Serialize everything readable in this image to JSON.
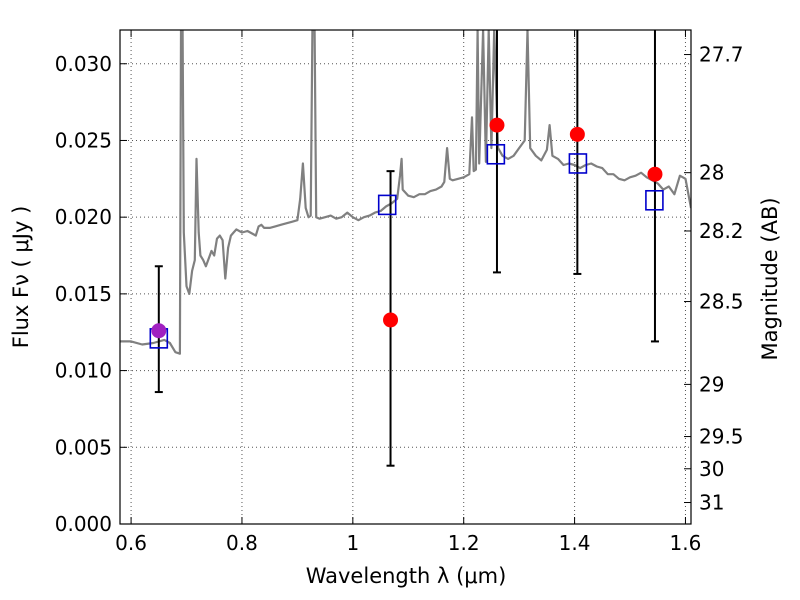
{
  "chart_data": {
    "type": "scatter",
    "xlabel": "Wavelength  λ (μm)",
    "ylabel": "Flux  Fν  ( μJy )",
    "y2label": "Magnitude (AB)",
    "xlim": [
      0.58,
      1.61
    ],
    "ylim": [
      0.0,
      0.0322
    ],
    "grid": true,
    "x_ticks": [
      {
        "value": 0.6,
        "label": "0.6"
      },
      {
        "value": 0.8,
        "label": "0.8"
      },
      {
        "value": 1.0,
        "label": "1"
      },
      {
        "value": 1.2,
        "label": "1.2"
      },
      {
        "value": 1.4,
        "label": "1.4"
      },
      {
        "value": 1.6,
        "label": "1.6"
      }
    ],
    "y_ticks": [
      {
        "value": 0.0,
        "label": "0.000"
      },
      {
        "value": 0.005,
        "label": "0.005"
      },
      {
        "value": 0.01,
        "label": "0.010"
      },
      {
        "value": 0.015,
        "label": "0.015"
      },
      {
        "value": 0.02,
        "label": "0.020"
      },
      {
        "value": 0.025,
        "label": "0.025"
      },
      {
        "value": 0.03,
        "label": "0.030"
      }
    ],
    "y2_ticks": [
      {
        "flux": 0.0306,
        "label": "27.7"
      },
      {
        "flux": 0.0229,
        "label": "28"
      },
      {
        "flux": 0.0191,
        "label": "28.2"
      },
      {
        "flux": 0.0145,
        "label": "28.5"
      },
      {
        "flux": 0.0091,
        "label": "29"
      },
      {
        "flux": 0.0057,
        "label": "29.5"
      },
      {
        "flux": 0.0036,
        "label": "30"
      },
      {
        "flux": 0.0014,
        "label": "31"
      }
    ],
    "colors": {
      "spectrum": "#808080",
      "observed": "#ff0000",
      "observed_first": "#a020c0",
      "model": "#0000cc",
      "errorbar": "#000000",
      "grid": "#555555"
    },
    "spectrum": [
      [
        0.58,
        0.0119
      ],
      [
        0.6,
        0.0119
      ],
      [
        0.62,
        0.0117
      ],
      [
        0.64,
        0.0118
      ],
      [
        0.66,
        0.012
      ],
      [
        0.67,
        0.0118
      ],
      [
        0.68,
        0.0112
      ],
      [
        0.688,
        0.0111
      ],
      [
        0.69,
        0.0322
      ],
      [
        0.693,
        0.0322
      ],
      [
        0.695,
        0.019
      ],
      [
        0.7,
        0.0155
      ],
      [
        0.705,
        0.015
      ],
      [
        0.71,
        0.0165
      ],
      [
        0.715,
        0.0172
      ],
      [
        0.718,
        0.0238
      ],
      [
        0.722,
        0.019
      ],
      [
        0.725,
        0.0175
      ],
      [
        0.73,
        0.0172
      ],
      [
        0.735,
        0.0168
      ],
      [
        0.74,
        0.0173
      ],
      [
        0.745,
        0.0178
      ],
      [
        0.75,
        0.0175
      ],
      [
        0.755,
        0.0186
      ],
      [
        0.76,
        0.0188
      ],
      [
        0.765,
        0.0185
      ],
      [
        0.77,
        0.016
      ],
      [
        0.775,
        0.018
      ],
      [
        0.78,
        0.0188
      ],
      [
        0.785,
        0.019
      ],
      [
        0.79,
        0.0192
      ],
      [
        0.8,
        0.019
      ],
      [
        0.81,
        0.0191
      ],
      [
        0.82,
        0.0189
      ],
      [
        0.825,
        0.0188
      ],
      [
        0.83,
        0.0194
      ],
      [
        0.835,
        0.0195
      ],
      [
        0.84,
        0.0193
      ],
      [
        0.85,
        0.0193
      ],
      [
        0.86,
        0.0194
      ],
      [
        0.87,
        0.0195
      ],
      [
        0.88,
        0.0196
      ],
      [
        0.89,
        0.0197
      ],
      [
        0.9,
        0.0198
      ],
      [
        0.905,
        0.0212
      ],
      [
        0.91,
        0.0235
      ],
      [
        0.915,
        0.0206
      ],
      [
        0.92,
        0.02
      ],
      [
        0.924,
        0.0201
      ],
      [
        0.927,
        0.0322
      ],
      [
        0.931,
        0.0322
      ],
      [
        0.934,
        0.02
      ],
      [
        0.94,
        0.0199
      ],
      [
        0.95,
        0.02
      ],
      [
        0.96,
        0.0201
      ],
      [
        0.97,
        0.0199
      ],
      [
        0.98,
        0.02
      ],
      [
        0.99,
        0.0203
      ],
      [
        1.0,
        0.02
      ],
      [
        1.01,
        0.0198
      ],
      [
        1.02,
        0.02
      ],
      [
        1.03,
        0.0201
      ],
      [
        1.04,
        0.0203
      ],
      [
        1.05,
        0.0204
      ],
      [
        1.06,
        0.0207
      ],
      [
        1.07,
        0.0209
      ],
      [
        1.08,
        0.0212
      ],
      [
        1.085,
        0.0227
      ],
      [
        1.088,
        0.0238
      ],
      [
        1.09,
        0.0218
      ],
      [
        1.1,
        0.0214
      ],
      [
        1.11,
        0.0213
      ],
      [
        1.12,
        0.0215
      ],
      [
        1.13,
        0.0215
      ],
      [
        1.14,
        0.0217
      ],
      [
        1.15,
        0.0218
      ],
      [
        1.16,
        0.022
      ],
      [
        1.165,
        0.0223
      ],
      [
        1.17,
        0.0245
      ],
      [
        1.175,
        0.0225
      ],
      [
        1.18,
        0.0224
      ],
      [
        1.19,
        0.0225
      ],
      [
        1.2,
        0.0226
      ],
      [
        1.21,
        0.0228
      ],
      [
        1.215,
        0.0265
      ],
      [
        1.218,
        0.023
      ],
      [
        1.222,
        0.0231
      ],
      [
        1.225,
        0.0322
      ],
      [
        1.228,
        0.0235
      ],
      [
        1.235,
        0.0322
      ],
      [
        1.24,
        0.0236
      ],
      [
        1.245,
        0.0322
      ],
      [
        1.25,
        0.0245
      ],
      [
        1.255,
        0.0322
      ],
      [
        1.262,
        0.0245
      ],
      [
        1.27,
        0.024
      ],
      [
        1.28,
        0.0238
      ],
      [
        1.29,
        0.024
      ],
      [
        1.3,
        0.0245
      ],
      [
        1.31,
        0.025
      ],
      [
        1.315,
        0.0322
      ],
      [
        1.32,
        0.0245
      ],
      [
        1.33,
        0.024
      ],
      [
        1.34,
        0.0237
      ],
      [
        1.35,
        0.0244
      ],
      [
        1.355,
        0.026
      ],
      [
        1.36,
        0.024
      ],
      [
        1.37,
        0.0238
      ],
      [
        1.38,
        0.0234
      ],
      [
        1.39,
        0.0235
      ],
      [
        1.4,
        0.0234
      ],
      [
        1.41,
        0.0232
      ],
      [
        1.42,
        0.0234
      ],
      [
        1.43,
        0.0235
      ],
      [
        1.44,
        0.0233
      ],
      [
        1.45,
        0.0232
      ],
      [
        1.46,
        0.0228
      ],
      [
        1.47,
        0.0228
      ],
      [
        1.48,
        0.0225
      ],
      [
        1.49,
        0.0224
      ],
      [
        1.5,
        0.0226
      ],
      [
        1.51,
        0.0227
      ],
      [
        1.52,
        0.0229
      ],
      [
        1.53,
        0.0226
      ],
      [
        1.54,
        0.0224
      ],
      [
        1.55,
        0.0222
      ],
      [
        1.56,
        0.0218
      ],
      [
        1.57,
        0.022
      ],
      [
        1.58,
        0.0215
      ],
      [
        1.59,
        0.0227
      ],
      [
        1.6,
        0.0225
      ],
      [
        1.61,
        0.0206
      ]
    ],
    "observed": [
      {
        "x": 0.65,
        "y": 0.0126,
        "err_low": 0.0086,
        "err_high": 0.0168
      },
      {
        "x": 1.068,
        "y": 0.0133,
        "err_low": 0.0038,
        "err_high": 0.023
      },
      {
        "x": 1.26,
        "y": 0.026,
        "err_low": 0.0164,
        "err_high": 0.0322
      },
      {
        "x": 1.405,
        "y": 0.0254,
        "err_low": 0.0163,
        "err_high": 0.0322
      },
      {
        "x": 1.545,
        "y": 0.0228,
        "err_low": 0.0119,
        "err_high": 0.0322
      }
    ],
    "model": [
      {
        "x": 0.65,
        "y": 0.0121
      },
      {
        "x": 1.062,
        "y": 0.0208
      },
      {
        "x": 1.258,
        "y": 0.0241
      },
      {
        "x": 1.406,
        "y": 0.0235
      },
      {
        "x": 1.544,
        "y": 0.0211
      }
    ]
  }
}
